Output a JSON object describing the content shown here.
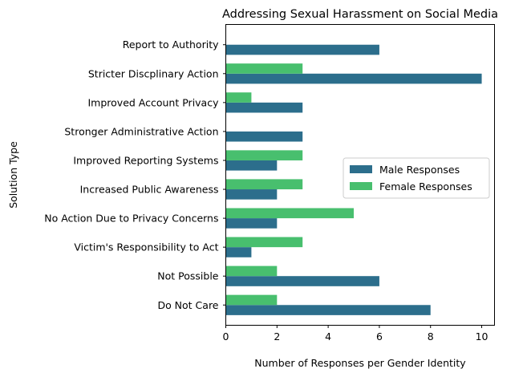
{
  "chart_data": {
    "type": "bar",
    "orientation": "horizontal",
    "title": "Addressing Sexual Harassment on Social Media",
    "xlabel": "Number of Responses per Gender Identity",
    "ylabel": "Solution Type",
    "xlim": [
      0,
      10.5
    ],
    "xticks": [
      0,
      2,
      4,
      6,
      8,
      10
    ],
    "legend_position": "center-right",
    "categories": [
      "Do Not Care",
      "Not Possible",
      "Victim's Responsibility to Act",
      "No Action Due to Privacy Concerns",
      "Increased Public Awareness",
      "Improved Reporting Systems",
      "Stronger Administrative Action",
      "Improved Account Privacy",
      "Stricter Discplinary Action",
      "Report to Authority"
    ],
    "series": [
      {
        "name": "Male Responses",
        "color": "#2c6e8c",
        "values": [
          8,
          6,
          1,
          2,
          2,
          2,
          3,
          3,
          10,
          6
        ]
      },
      {
        "name": "Female Responses",
        "color": "#48bf6e",
        "values": [
          2,
          2,
          3,
          5,
          3,
          3,
          0,
          1,
          3,
          0
        ]
      }
    ]
  }
}
